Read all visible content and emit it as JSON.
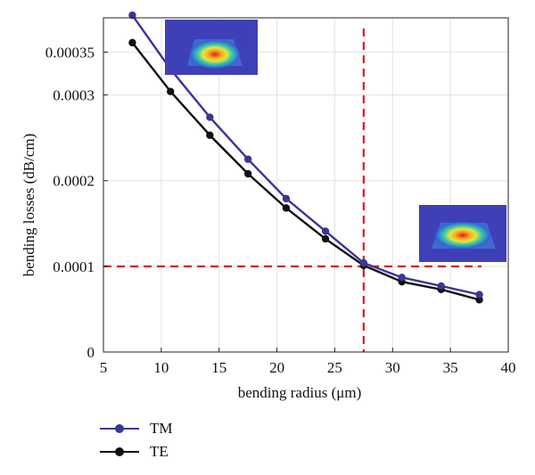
{
  "chart_data": {
    "type": "line",
    "title": "",
    "xlabel": "bending radius (μm)",
    "ylabel": "bending losses (dB/cm)",
    "xlim": [
      5,
      40
    ],
    "ylim": [
      0,
      0.00039
    ],
    "x_ticks": [
      5,
      10,
      15,
      20,
      25,
      30,
      35,
      40
    ],
    "x_tick_labels": [
      "5",
      "10",
      "15",
      "20",
      "25",
      "30",
      "35",
      "40"
    ],
    "y_ticks": [
      0,
      0.0001,
      0.0002,
      0.0003,
      0.00035
    ],
    "y_tick_labels": [
      "0",
      "0.0001",
      "0.0002",
      "0.0003",
      "0.00035"
    ],
    "grid": true,
    "legend_position": "below",
    "series": [
      {
        "name": "TM",
        "color": "#3b3596",
        "x": [
          7.5,
          10.8,
          14.2,
          17.5,
          20.8,
          24.2,
          27.5,
          30.8,
          34.2,
          37.5
        ],
        "y": [
          0.000393,
          0.00033,
          0.000274,
          0.000225,
          0.000179,
          0.000141,
          0.000104,
          8.7e-05,
          7.7e-05,
          6.7e-05
        ]
      },
      {
        "name": "TE",
        "color": "#111111",
        "x": [
          7.5,
          10.8,
          14.2,
          17.5,
          20.8,
          24.2,
          27.5,
          30.8,
          34.2,
          37.5
        ],
        "y": [
          0.000361,
          0.000304,
          0.000253,
          0.000208,
          0.000168,
          0.000132,
          0.000101,
          8.2e-05,
          7.3e-05,
          6.1e-05
        ]
      }
    ],
    "reference_lines": {
      "color": "#d92020",
      "horizontal_y": 0.0001,
      "vertical_x": 27.5
    },
    "insets": [
      {
        "name": "mode-profile-tm",
        "background": "#3f3fb8",
        "position": "top-left"
      },
      {
        "name": "mode-profile-te",
        "background": "#3f3fb8",
        "position": "middle-right"
      }
    ]
  }
}
